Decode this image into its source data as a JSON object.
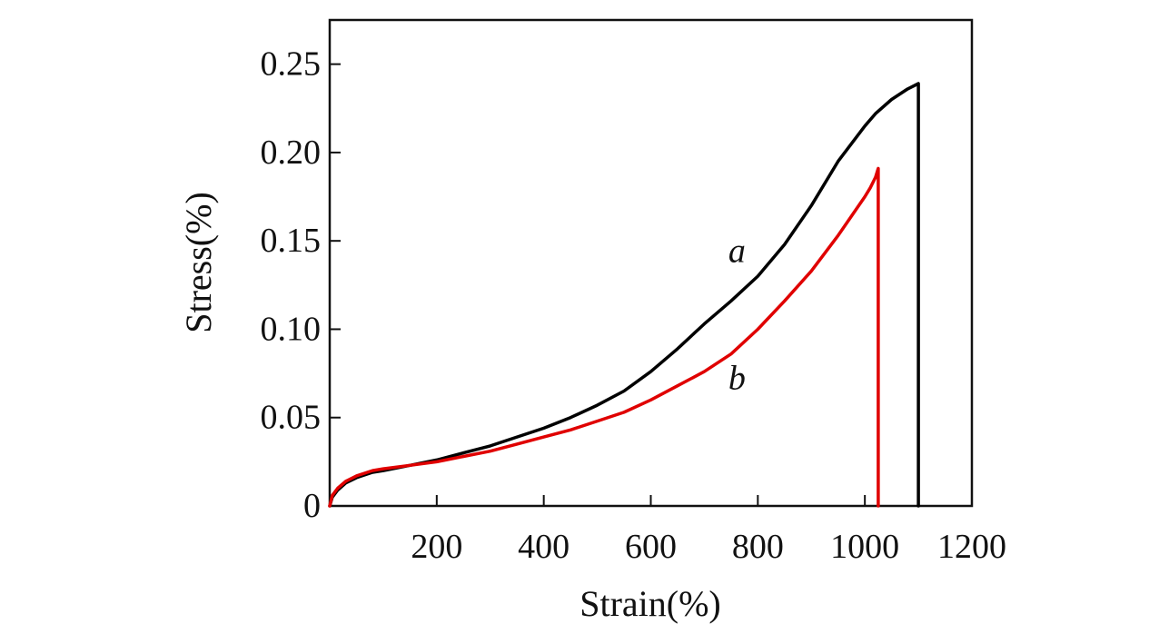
{
  "chart_data": {
    "type": "line",
    "xlabel": "Strain(%)",
    "ylabel": "Stress(%)",
    "xlim": [
      0,
      1200
    ],
    "ylim": [
      0,
      0.275
    ],
    "xticks": [
      200,
      400,
      600,
      800,
      1000,
      1200
    ],
    "yticks": [
      0,
      0.05,
      0.1,
      0.15,
      0.2,
      0.25
    ],
    "xtick_labels": [
      "200",
      "400",
      "600",
      "800",
      "1000",
      "1200"
    ],
    "ytick_labels": [
      "0",
      "0.05",
      "0.10",
      "0.15",
      "0.20",
      "0.25"
    ],
    "grid": false,
    "legend": "none",
    "series": [
      {
        "name": "a",
        "color": "#000000",
        "x": [
          0,
          5,
          15,
          30,
          50,
          80,
          100,
          150,
          200,
          250,
          300,
          350,
          400,
          450,
          500,
          550,
          600,
          650,
          700,
          750,
          800,
          850,
          900,
          950,
          1000,
          1020,
          1050,
          1080,
          1100,
          1100
        ],
        "y": [
          0,
          0.005,
          0.009,
          0.013,
          0.016,
          0.019,
          0.02,
          0.023,
          0.026,
          0.03,
          0.034,
          0.039,
          0.044,
          0.05,
          0.057,
          0.065,
          0.076,
          0.089,
          0.103,
          0.116,
          0.13,
          0.148,
          0.17,
          0.195,
          0.215,
          0.222,
          0.23,
          0.236,
          0.239,
          0
        ]
      },
      {
        "name": "b",
        "color": "#e00000",
        "x": [
          0,
          5,
          15,
          30,
          50,
          80,
          100,
          150,
          200,
          250,
          300,
          350,
          400,
          450,
          500,
          550,
          600,
          650,
          700,
          750,
          800,
          850,
          900,
          950,
          1000,
          1010,
          1020,
          1025,
          1025
        ],
        "y": [
          0,
          0.006,
          0.01,
          0.014,
          0.017,
          0.02,
          0.021,
          0.023,
          0.025,
          0.028,
          0.031,
          0.035,
          0.039,
          0.043,
          0.048,
          0.053,
          0.06,
          0.068,
          0.076,
          0.086,
          0.1,
          0.116,
          0.133,
          0.153,
          0.175,
          0.18,
          0.186,
          0.191,
          0
        ]
      }
    ],
    "annotations": [
      {
        "text": "a",
        "x": 745,
        "y": 0.138
      },
      {
        "text": "b",
        "x": 745,
        "y": 0.066
      }
    ]
  }
}
